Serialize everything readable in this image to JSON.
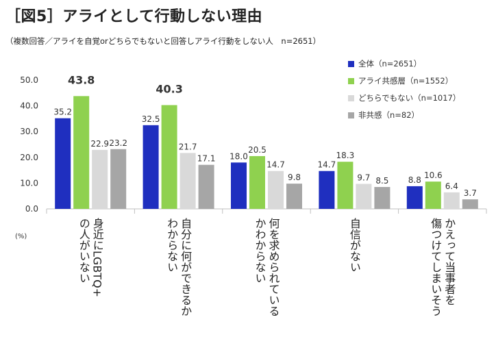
{
  "title": "［図5］アライとして行動しない理由",
  "subtitle": "（複数回答／アライを自覚orどちらでもないと回答しアライ行動をしない人　n=2651）",
  "chart_data": {
    "type": "bar",
    "unit_label": "(%)",
    "ylim": [
      0,
      50
    ],
    "yticks": [
      "0.0",
      "10.0",
      "20.0",
      "30.0",
      "40.0",
      "50.0"
    ],
    "legend_position": "top-right",
    "categories": [
      [
        "身近にLGBTQ+",
        "の人がいない"
      ],
      [
        "自分に何ができるか",
        "わからない"
      ],
      [
        "何を求められている",
        "かわからない"
      ],
      [
        "自信がない"
      ],
      [
        "かえって当事者を",
        "傷つけてしまいそう"
      ]
    ],
    "series": [
      {
        "name": "全体（n=2651）",
        "color": "#1f2fbf",
        "values": [
          35.2,
          32.5,
          18.0,
          14.7,
          8.8
        ]
      },
      {
        "name": "アライ共感層（n=1552）",
        "color": "#8fd14f",
        "values": [
          43.8,
          40.3,
          20.5,
          18.3,
          10.6
        ]
      },
      {
        "name": "どちらでもない（n=1017）",
        "color": "#d9d9d9",
        "values": [
          22.9,
          21.7,
          14.7,
          9.7,
          6.4
        ]
      },
      {
        "name": "非共感（n=82）",
        "color": "#a6a6a6",
        "values": [
          23.2,
          17.1,
          9.8,
          8.5,
          3.7
        ]
      }
    ],
    "emphasized": [
      [
        1,
        0
      ],
      [
        1,
        1
      ]
    ]
  }
}
